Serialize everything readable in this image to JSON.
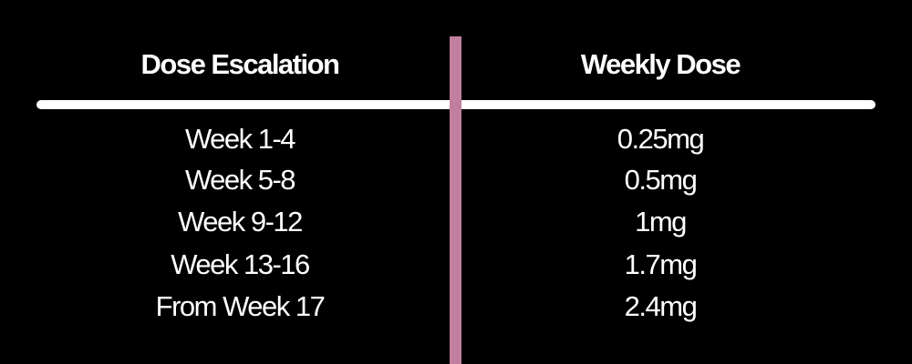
{
  "table": {
    "header": [
      "Dose Escalation",
      "Weekly Dose"
    ],
    "rows": [
      [
        "Week 1-4",
        "0.25mg"
      ],
      [
        "Week 5-8",
        "0.5mg"
      ],
      [
        "Week 9-12",
        "1mg"
      ],
      [
        "Week 13-16",
        "1.7mg"
      ],
      [
        "From Week 17",
        "2.4mg"
      ]
    ]
  }
}
